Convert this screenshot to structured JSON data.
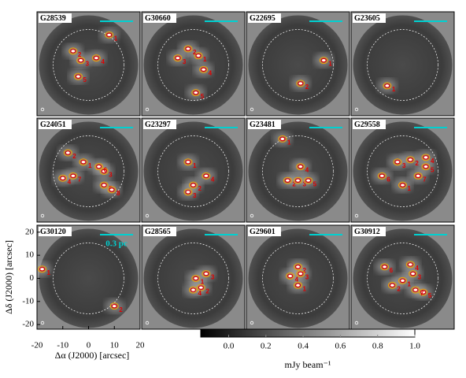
{
  "chart_data": {
    "type": "image-grid",
    "xlabel": "Δα (J2000)  [arcsec]",
    "ylabel": "Δδ (J2000)  [arcsec]",
    "xlim": [
      -20,
      20
    ],
    "ylim": [
      -22,
      23
    ],
    "xticks": [
      -20,
      -10,
      0,
      10,
      20
    ],
    "yticks": [
      -20,
      -10,
      0,
      10,
      20
    ],
    "scalebar": {
      "label": "0.3 pc",
      "color": "#00d0d0"
    },
    "contour_colors": [
      "#f0a000",
      "#e00000"
    ],
    "colorbar": {
      "label": "mJy beam⁻¹",
      "clim": [
        -0.15,
        1.0
      ],
      "ticks": [
        {
          "value": 0,
          "label": "0.0"
        },
        0.2,
        0.4,
        0.6,
        0.8,
        {
          "value": 1,
          "label": "1.0"
        }
      ]
    },
    "panels": [
      {
        "name": "G28539",
        "sources": [
          {
            "label": "1",
            "x": 8,
            "y": 13
          },
          {
            "label": "2",
            "x": -6,
            "y": 6
          },
          {
            "label": "3",
            "x": -3,
            "y": 2
          },
          {
            "label": "4",
            "x": 3,
            "y": 3
          },
          {
            "label": "5",
            "x": -4,
            "y": -5
          }
        ]
      },
      {
        "name": "G30660",
        "sources": [
          {
            "label": "1",
            "x": 2,
            "y": 4
          },
          {
            "label": "2",
            "x": -2,
            "y": 7
          },
          {
            "label": "3",
            "x": -6,
            "y": 3
          },
          {
            "label": "4",
            "x": 4,
            "y": -2
          },
          {
            "label": "5",
            "x": 1,
            "y": -12
          }
        ]
      },
      {
        "name": "G22695",
        "sources": [
          {
            "label": "1",
            "x": 10,
            "y": 2
          },
          {
            "label": "2",
            "x": 1,
            "y": -8
          }
        ]
      },
      {
        "name": "G23605",
        "sources": [
          {
            "label": "1",
            "x": -6,
            "y": -9
          }
        ]
      },
      {
        "name": "G24051",
        "sources": [
          {
            "label": "1",
            "x": -2,
            "y": 4
          },
          {
            "label": "2",
            "x": -8,
            "y": 8
          },
          {
            "label": "3",
            "x": 6,
            "y": 0
          },
          {
            "label": "4",
            "x": -10,
            "y": -3
          },
          {
            "label": "5",
            "x": 6,
            "y": -6
          },
          {
            "label": "6",
            "x": 4,
            "y": 2
          },
          {
            "label": "7",
            "x": -6,
            "y": -2
          },
          {
            "label": "8",
            "x": 9,
            "y": -8
          }
        ]
      },
      {
        "name": "G23297",
        "sources": [
          {
            "label": "1",
            "x": -2,
            "y": 4
          },
          {
            "label": "2",
            "x": 0,
            "y": -6
          },
          {
            "label": "3",
            "x": -2,
            "y": -9
          },
          {
            "label": "4",
            "x": 5,
            "y": -2
          }
        ]
      },
      {
        "name": "G23481",
        "sources": [
          {
            "label": "1",
            "x": -6,
            "y": 14
          },
          {
            "label": "2",
            "x": -4,
            "y": -4
          },
          {
            "label": "3",
            "x": 0,
            "y": -4
          },
          {
            "label": "4",
            "x": 1,
            "y": 2
          },
          {
            "label": "5",
            "x": 4,
            "y": -4
          }
        ]
      },
      {
        "name": "G29558",
        "sources": [
          {
            "label": "1",
            "x": 0,
            "y": -6
          },
          {
            "label": "2",
            "x": 3,
            "y": 5
          },
          {
            "label": "3",
            "x": -2,
            "y": 4
          },
          {
            "label": "4",
            "x": 9,
            "y": 6
          },
          {
            "label": "5",
            "x": 9,
            "y": 2
          },
          {
            "label": "6",
            "x": -8,
            "y": -2
          },
          {
            "label": "7",
            "x": 6,
            "y": -2
          }
        ]
      },
      {
        "name": "G30120",
        "sources": [
          {
            "label": "1",
            "x": -18,
            "y": 4
          },
          {
            "label": "2",
            "x": 10,
            "y": -12
          }
        ]
      },
      {
        "name": "G28565",
        "sources": [
          {
            "label": "1",
            "x": 1,
            "y": 0
          },
          {
            "label": "2",
            "x": 3,
            "y": -4
          },
          {
            "label": "3",
            "x": 5,
            "y": 2
          },
          {
            "label": "4",
            "x": 0,
            "y": -5
          }
        ]
      },
      {
        "name": "G29601",
        "sources": [
          {
            "label": "1",
            "x": 0,
            "y": -3
          },
          {
            "label": "2",
            "x": 0,
            "y": 5
          },
          {
            "label": "3",
            "x": 1,
            "y": 2
          },
          {
            "label": "4",
            "x": -3,
            "y": 1
          }
        ]
      },
      {
        "name": "G30912",
        "sources": [
          {
            "label": "1",
            "x": 0,
            "y": -1
          },
          {
            "label": "2",
            "x": -4,
            "y": -3
          },
          {
            "label": "3",
            "x": 4,
            "y": 2
          },
          {
            "label": "4",
            "x": 3,
            "y": 6
          },
          {
            "label": "5",
            "x": 8,
            "y": -6
          },
          {
            "label": "6",
            "x": -7,
            "y": 5
          },
          {
            "label": "7",
            "x": 5,
            "y": -5
          }
        ]
      }
    ]
  }
}
